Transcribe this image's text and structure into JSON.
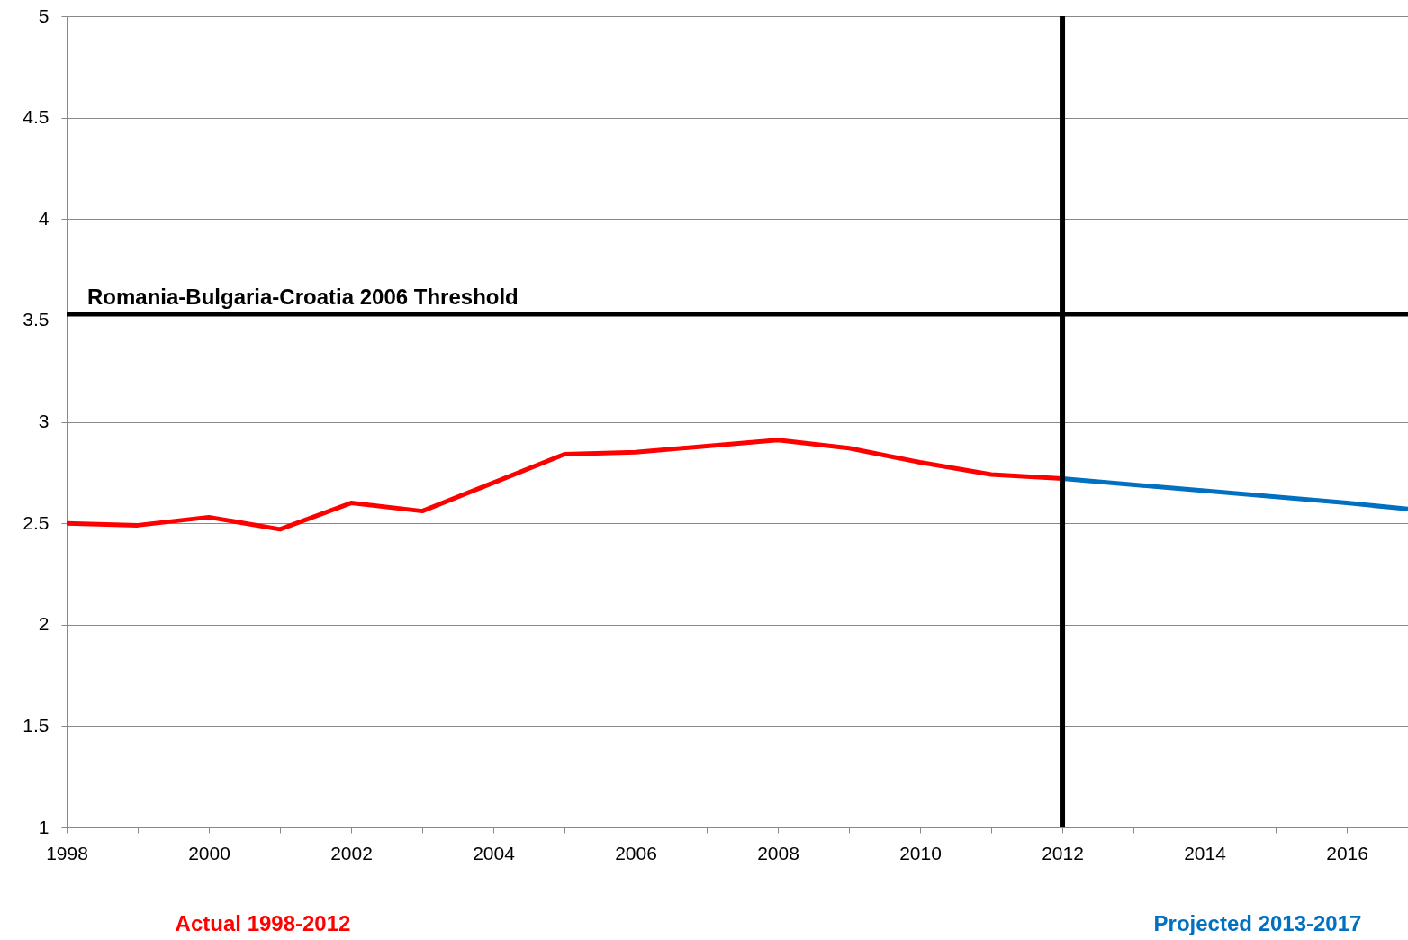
{
  "chart_data": {
    "type": "line",
    "series": [
      {
        "name": "Actual 1998-2012",
        "color": "#ff0000",
        "x": [
          1998,
          1999,
          2000,
          2001,
          2002,
          2003,
          2004,
          2005,
          2006,
          2007,
          2008,
          2009,
          2010,
          2011,
          2012
        ],
        "values": [
          2.5,
          2.49,
          2.53,
          2.47,
          2.6,
          2.56,
          2.7,
          2.84,
          2.85,
          2.88,
          2.91,
          2.87,
          2.8,
          2.74,
          2.72
        ]
      },
      {
        "name": "Projected 2013-2017",
        "color": "#0070c0",
        "x": [
          2012,
          2014,
          2016,
          2016.86
        ],
        "values": [
          2.72,
          2.66,
          2.6,
          2.57
        ]
      }
    ],
    "xlim": [
      1998,
      2016.86
    ],
    "xticks": [
      1998,
      {
        "value": 1999,
        "label": null
      },
      2000,
      {
        "value": 2001,
        "label": null
      },
      2002,
      {
        "value": 2003,
        "label": null
      },
      2004,
      {
        "value": 2005,
        "label": null
      },
      2006,
      {
        "value": 2007,
        "label": null
      },
      2008,
      {
        "value": 2009,
        "label": null
      },
      2010,
      {
        "value": 2011,
        "label": null
      },
      2012,
      {
        "value": 2013,
        "label": null
      },
      2014,
      {
        "value": 2015,
        "label": null
      },
      2016
    ],
    "ylim": [
      1,
      5
    ],
    "yticks": [
      1,
      1.5,
      2,
      2.5,
      3,
      3.5,
      4,
      4.5,
      5
    ],
    "grid": "y",
    "marker": "none",
    "line_style": "solid",
    "ref_lines": [
      {
        "axis": "y",
        "value": 3.53,
        "label": "Romania-Bulgaria-Croatia 2006 Threshold",
        "color": "#000000"
      },
      {
        "axis": "x",
        "value": 2012,
        "color": "#000000"
      }
    ]
  }
}
